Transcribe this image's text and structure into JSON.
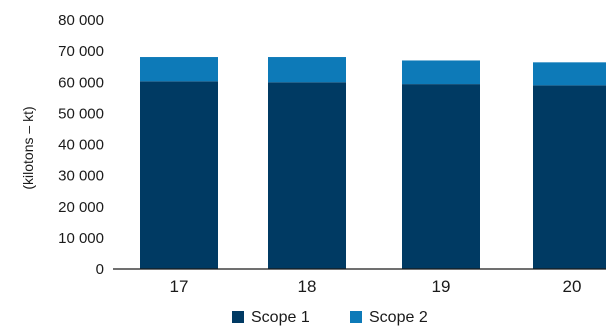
{
  "chart_data": {
    "type": "bar",
    "stacked": true,
    "title": "",
    "ylabel": "(kilotons – kt)",
    "xlabel": "",
    "categories": [
      "17",
      "18",
      "19",
      "20"
    ],
    "ylim": [
      0,
      80000
    ],
    "yticks": [
      {
        "value": 0,
        "label": "0"
      },
      {
        "value": 10000,
        "label": "10 000"
      },
      {
        "value": 20000,
        "label": "20 000"
      },
      {
        "value": 30000,
        "label": "30 000"
      },
      {
        "value": 40000,
        "label": "40 000"
      },
      {
        "value": 50000,
        "label": "50 000"
      },
      {
        "value": 60000,
        "label": "60 000"
      },
      {
        "value": 70000,
        "label": "70 000"
      },
      {
        "value": 80000,
        "label": "80 000"
      }
    ],
    "series": [
      {
        "name": "Scope 1",
        "color": "#003a63",
        "values": [
          60300,
          60000,
          59400,
          59000
        ]
      },
      {
        "name": "Scope 2",
        "color": "#0d7ab8",
        "values": [
          7800,
          8100,
          7600,
          7400
        ]
      }
    ],
    "legend_position": "bottom",
    "grid": false
  }
}
